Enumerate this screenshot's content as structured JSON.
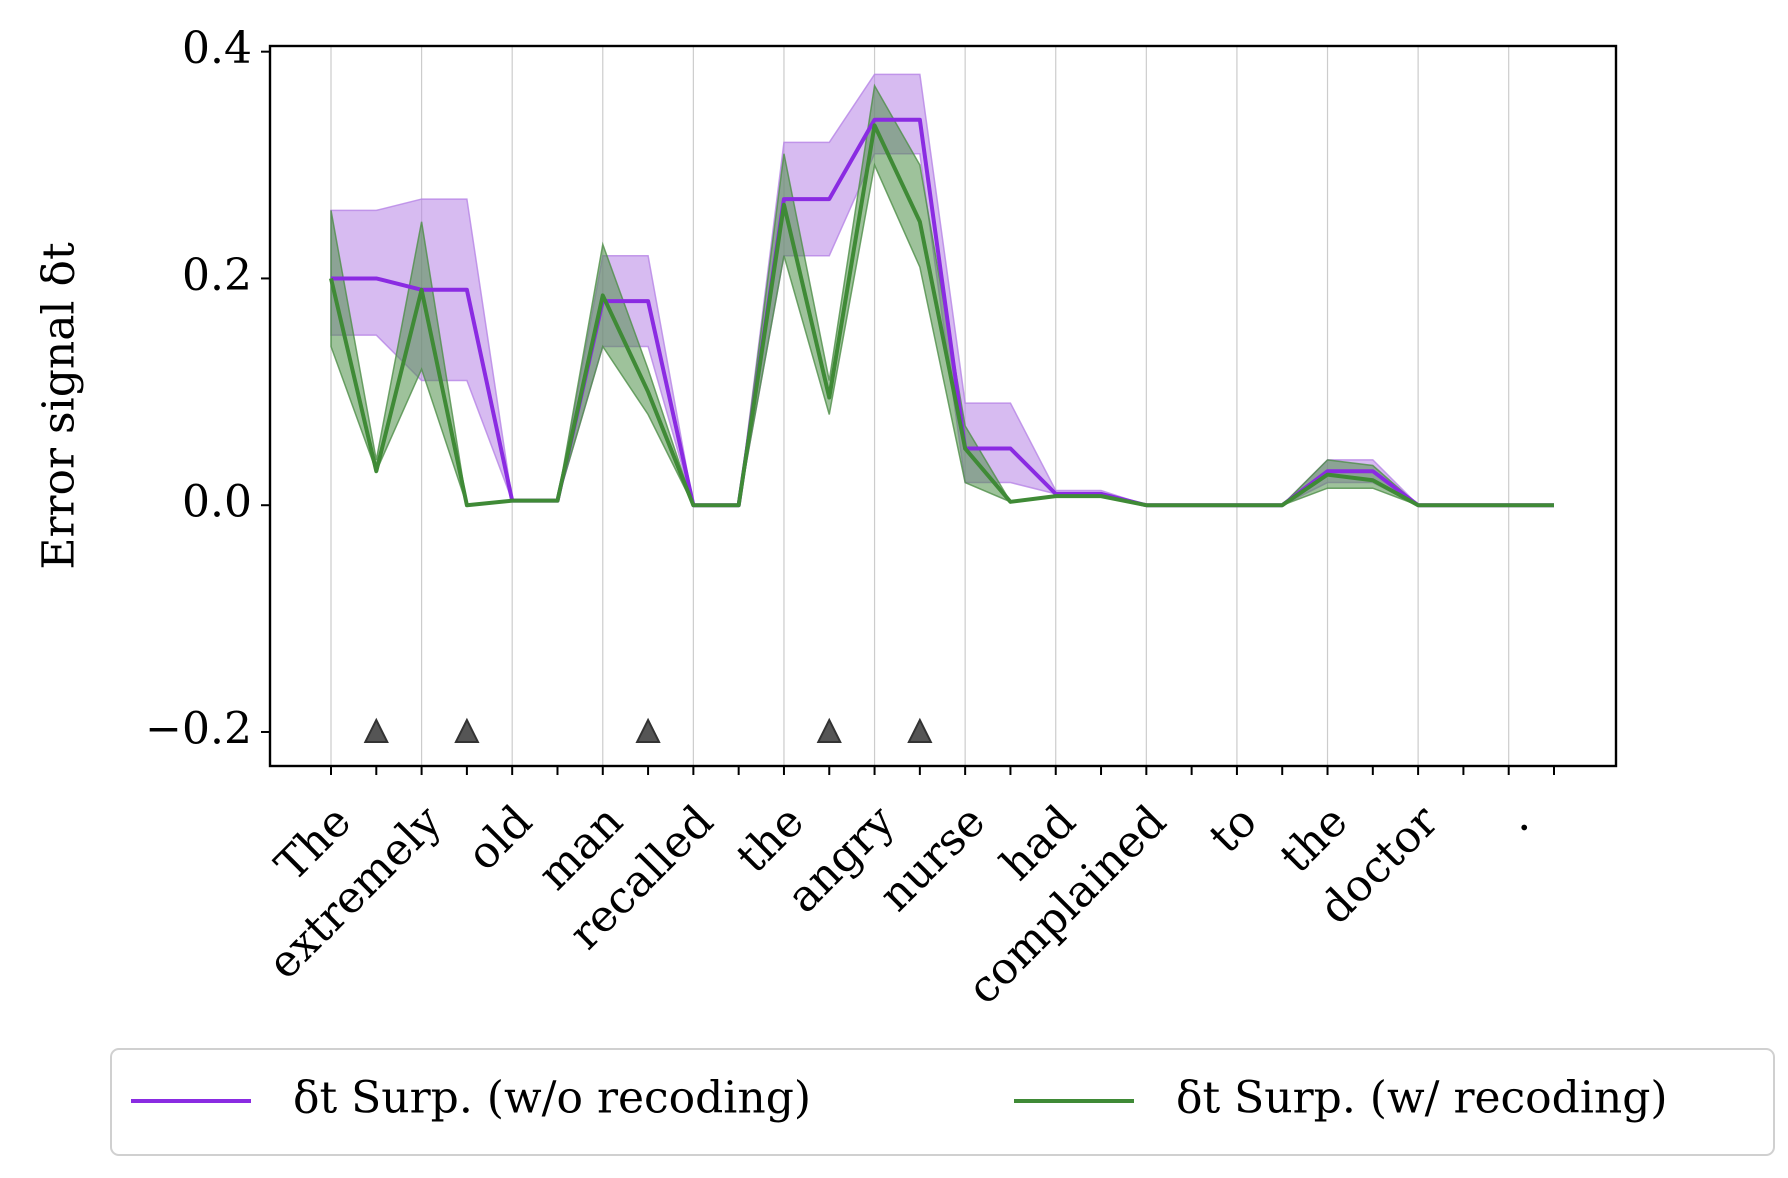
{
  "chart_data": {
    "type": "line",
    "ylabel": "Error signal δt",
    "categories": [
      "The",
      null,
      "extremely",
      null,
      "old",
      null,
      "man",
      null,
      "recalled",
      null,
      "the",
      null,
      "angry",
      null,
      "nurse",
      null,
      "had",
      null,
      "complained",
      null,
      "to",
      null,
      "the",
      null,
      "doctor",
      null,
      ".",
      null
    ],
    "series": [
      {
        "name": "δt Surp. (w/o recoding)",
        "color": "#8a2be2",
        "band_color": "#b784e6",
        "values": [
          0.2,
          0.2,
          0.19,
          0.19,
          0.004,
          0.004,
          0.18,
          0.18,
          0,
          0,
          0.27,
          0.27,
          0.34,
          0.34,
          0.05,
          0.05,
          0.01,
          0.01,
          0,
          0,
          0,
          0,
          0.03,
          0.03,
          0,
          0,
          0,
          0
        ],
        "lower": [
          0.15,
          0.15,
          0.11,
          0.11,
          0.004,
          0.004,
          0.14,
          0.14,
          0,
          0,
          0.22,
          0.22,
          0.31,
          0.31,
          0.02,
          0.02,
          0.01,
          0.01,
          0,
          0,
          0,
          0,
          0.02,
          0.02,
          0,
          0,
          0,
          0
        ],
        "upper": [
          0.26,
          0.26,
          0.27,
          0.27,
          0.004,
          0.004,
          0.22,
          0.22,
          0,
          0,
          0.32,
          0.32,
          0.38,
          0.38,
          0.09,
          0.09,
          0.013,
          0.013,
          0,
          0,
          0,
          0,
          0.04,
          0.04,
          0,
          0,
          0,
          0
        ]
      },
      {
        "name": "δt Surp. (w/ recoding)",
        "color": "#3f8a36",
        "band_color": "#4f8f48",
        "values": [
          0.2,
          0.03,
          0.19,
          0,
          0.004,
          0.004,
          0.185,
          0.1,
          0,
          0,
          0.265,
          0.095,
          0.335,
          0.25,
          0.05,
          0.003,
          0.008,
          0.008,
          0,
          0,
          0,
          0,
          0.027,
          0.022,
          0,
          0,
          0,
          0
        ],
        "lower": [
          0.14,
          0.03,
          0.12,
          0,
          0.004,
          0.004,
          0.14,
          0.08,
          0,
          0,
          0.22,
          0.08,
          0.3,
          0.21,
          0.02,
          0.003,
          0.008,
          0.008,
          0,
          0,
          0,
          0,
          0.015,
          0.015,
          0,
          0,
          0,
          0
        ],
        "upper": [
          0.26,
          0.04,
          0.25,
          0,
          0.004,
          0.004,
          0.23,
          0.12,
          0,
          0,
          0.31,
          0.11,
          0.37,
          0.3,
          0.07,
          0.003,
          0.008,
          0.008,
          0,
          0,
          0,
          0,
          0.04,
          0.035,
          0,
          0,
          0,
          0
        ]
      }
    ],
    "markers": {
      "positions": [
        1,
        3,
        7,
        11,
        13
      ],
      "values": [
        -0.2,
        -0.2,
        -0.2,
        -0.2,
        -0.2
      ],
      "color": "#555555"
    },
    "ylim": [
      -0.23,
      0.405
    ],
    "yticks": [
      {
        "value": -0.2,
        "label": "−0.2"
      },
      {
        "value": 0.0,
        "label": "0.0"
      },
      {
        "value": 0.2,
        "label": "0.2"
      },
      {
        "value": 0.4,
        "label": "0.4"
      }
    ],
    "grid": true,
    "legend": "bottom"
  }
}
